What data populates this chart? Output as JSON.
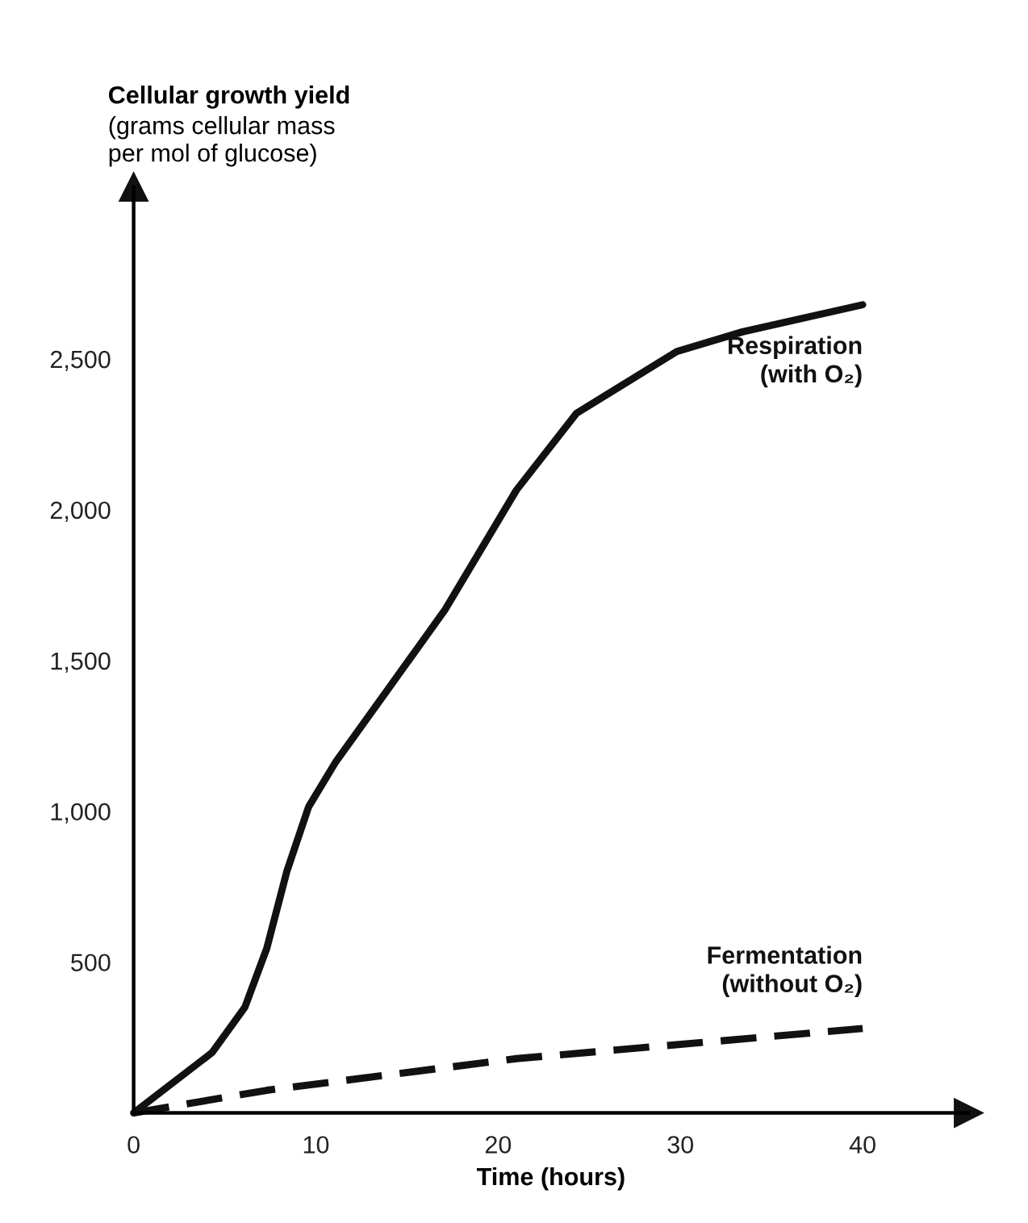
{
  "chart_data": {
    "type": "line",
    "ylabel": "Cellular growth yield\n(grams cellular mass\nper mol of glucose)",
    "xlabel": "Time (hours)",
    "xlim": [
      0,
      45.8
    ],
    "xticks": [
      0,
      10,
      20,
      30,
      40
    ],
    "ylim": [
      0,
      3070
    ],
    "yticks": [
      {
        "value": 500,
        "label": "500"
      },
      {
        "value": 1000,
        "label": "1,000"
      },
      {
        "value": 1500,
        "label": "1,500"
      },
      {
        "value": 2000,
        "label": "2,000"
      },
      {
        "value": 2500,
        "label": "2,500"
      }
    ],
    "grid": false,
    "legend": false,
    "marker": "none",
    "series": [
      {
        "name": "Respiration\n(with O₂)",
        "color": "#111111",
        "line_style": "solid",
        "x": [
          0,
          4.3,
          6.1,
          7.3,
          8.4,
          9.6,
          11.1,
          13.9,
          17.1,
          21,
          24.3,
          29.8,
          33.4,
          40
        ],
        "values": [
          0,
          200,
          350,
          545,
          800,
          1015,
          1165,
          1400,
          1670,
          2065,
          2320,
          2525,
          2590,
          2680
        ]
      },
      {
        "name": "Fermentation\n(without O₂)",
        "color": "#111111",
        "line_style": "dashed",
        "x": [
          0,
          7.3,
          21,
          40
        ],
        "values": [
          0,
          75,
          180,
          280
        ]
      }
    ]
  }
}
